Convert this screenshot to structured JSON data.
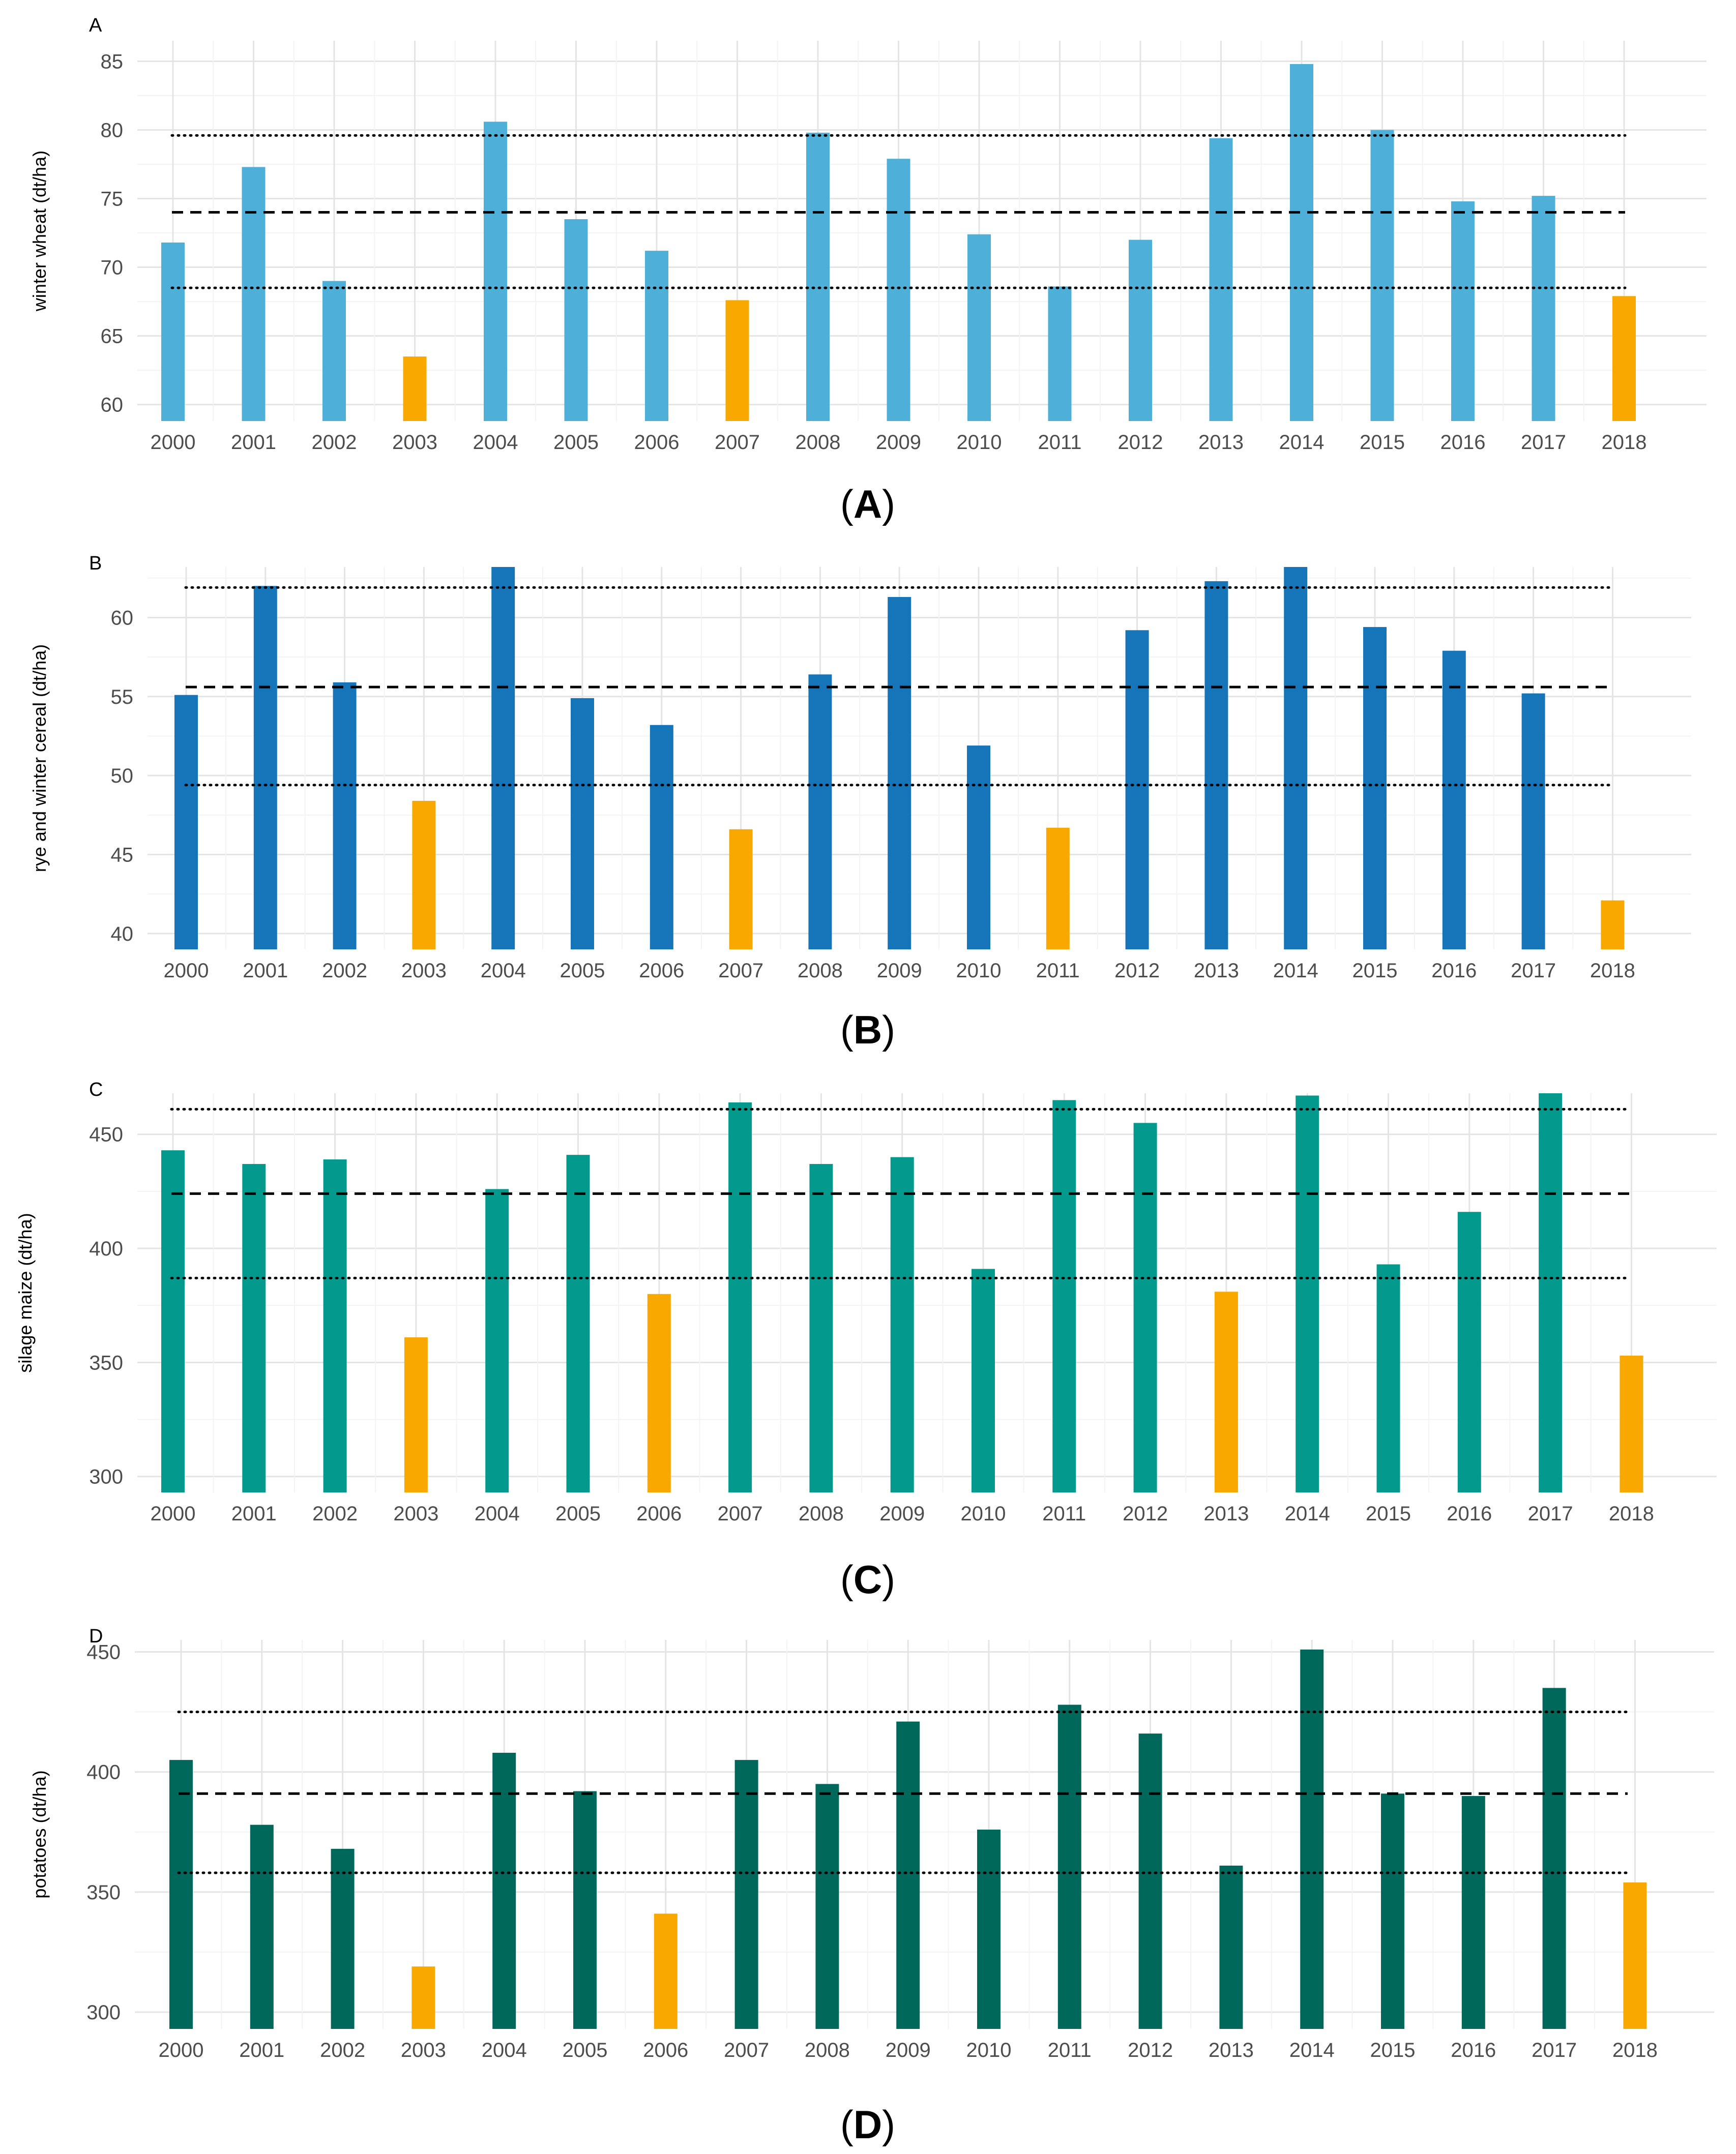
{
  "chart_data": [
    {
      "type": "bar",
      "panel_letter": "A",
      "caption": "A",
      "ylabel": "winter wheat (dt/ha)",
      "categories": [
        "2000",
        "2001",
        "2002",
        "2003",
        "2004",
        "2005",
        "2006",
        "2007",
        "2008",
        "2009",
        "2010",
        "2011",
        "2012",
        "2013",
        "2014",
        "2015",
        "2016",
        "2017",
        "2018"
      ],
      "values": [
        71.8,
        77.3,
        69.0,
        63.5,
        80.6,
        73.5,
        71.2,
        67.6,
        79.8,
        77.9,
        72.4,
        68.6,
        72.0,
        79.4,
        84.8,
        80.0,
        74.8,
        75.2,
        67.9
      ],
      "highlight": [
        false,
        false,
        false,
        true,
        false,
        false,
        false,
        true,
        false,
        false,
        false,
        false,
        false,
        false,
        false,
        false,
        false,
        false,
        true
      ],
      "reference_lines": {
        "mean": 74.0,
        "upper": 79.6,
        "lower": 68.5
      },
      "ylim": [
        58.8,
        86.5
      ],
      "yticks": [
        60,
        65,
        70,
        75,
        80,
        85
      ],
      "grid": true,
      "colors": {
        "bar": "#4eb0d8",
        "highlight": "#f9a800"
      }
    },
    {
      "type": "bar",
      "panel_letter": "B",
      "caption": "B",
      "ylabel": "rye and winter cereal (dt/ha)",
      "categories": [
        "2000",
        "2001",
        "2002",
        "2003",
        "2004",
        "2005",
        "2006",
        "2007",
        "2008",
        "2009",
        "2010",
        "2011",
        "2012",
        "2013",
        "2014",
        "2015",
        "2016",
        "2017",
        "2018"
      ],
      "values": [
        55.1,
        62.0,
        55.9,
        48.4,
        63.2,
        54.9,
        53.2,
        46.6,
        56.4,
        61.3,
        51.9,
        46.7,
        59.2,
        62.3,
        63.2,
        59.4,
        57.9,
        55.2,
        42.1
      ],
      "highlight": [
        false,
        false,
        false,
        true,
        false,
        false,
        false,
        true,
        false,
        false,
        false,
        true,
        false,
        false,
        false,
        false,
        false,
        false,
        true
      ],
      "reference_lines": {
        "mean": 55.6,
        "upper": 61.9,
        "lower": 49.4
      },
      "ylim": [
        39.0,
        63.2
      ],
      "yticks": [
        40,
        45,
        50,
        55,
        60
      ],
      "grid": true,
      "colors": {
        "bar": "#1675b9",
        "highlight": "#f9a800"
      }
    },
    {
      "type": "bar",
      "panel_letter": "C",
      "caption": "C",
      "ylabel": "silage maize (dt/ha)",
      "categories": [
        "2000",
        "2001",
        "2002",
        "2003",
        "2004",
        "2005",
        "2006",
        "2007",
        "2008",
        "2009",
        "2010",
        "2011",
        "2012",
        "2013",
        "2014",
        "2015",
        "2016",
        "2017",
        "2018"
      ],
      "values": [
        443,
        437,
        439,
        361,
        426,
        441,
        380,
        464,
        437,
        440,
        391,
        465,
        455,
        381,
        467,
        393,
        416,
        468,
        353
      ],
      "highlight": [
        false,
        false,
        false,
        true,
        false,
        false,
        true,
        false,
        false,
        false,
        false,
        false,
        false,
        true,
        false,
        false,
        false,
        false,
        true
      ],
      "reference_lines": {
        "mean": 424,
        "upper": 461,
        "lower": 387
      },
      "ylim": [
        293,
        468
      ],
      "yticks": [
        300,
        350,
        400,
        450
      ],
      "grid": true,
      "colors": {
        "bar": "#039a8d",
        "highlight": "#f9a800"
      }
    },
    {
      "type": "bar",
      "panel_letter": "D",
      "caption": "D",
      "ylabel": "potatoes (dt/ha)",
      "categories": [
        "2000",
        "2001",
        "2002",
        "2003",
        "2004",
        "2005",
        "2006",
        "2007",
        "2008",
        "2009",
        "2010",
        "2011",
        "2012",
        "2013",
        "2014",
        "2015",
        "2016",
        "2017",
        "2018"
      ],
      "values": [
        405,
        378,
        368,
        319,
        408,
        392,
        341,
        405,
        395,
        421,
        376,
        428,
        416,
        361,
        451,
        391,
        390,
        435,
        354
      ],
      "highlight": [
        false,
        false,
        false,
        true,
        false,
        false,
        true,
        false,
        false,
        false,
        false,
        false,
        false,
        false,
        false,
        false,
        false,
        false,
        true
      ],
      "reference_lines": {
        "mean": 391,
        "upper": 425,
        "lower": 358
      },
      "ylim": [
        293,
        455
      ],
      "yticks": [
        300,
        350,
        400,
        450
      ],
      "grid": true,
      "colors": {
        "bar": "#00675b",
        "highlight": "#f9a800"
      }
    }
  ]
}
